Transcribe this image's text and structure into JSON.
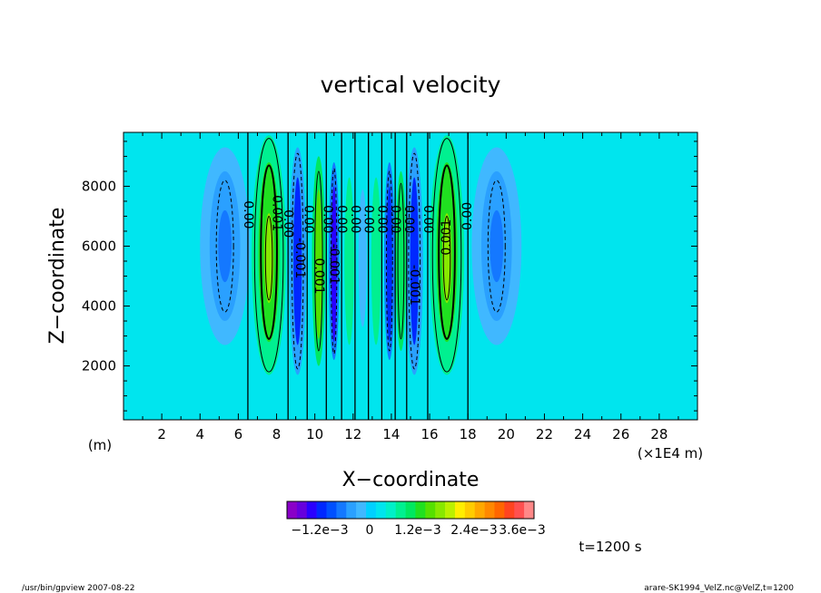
{
  "chart_data": {
    "type": "heatmap",
    "title": "vertical velocity",
    "xlabel": "X−coordinate",
    "ylabel": "Z−coordinate",
    "xunit_left": "(m)",
    "xunit_right": "(×1E4 m)",
    "xlim": [
      0,
      30
    ],
    "ylim": [
      200,
      9800
    ],
    "xticks": [
      2,
      4,
      6,
      8,
      10,
      12,
      14,
      16,
      18,
      20,
      22,
      24,
      26,
      28
    ],
    "xtick_labels": [
      "2",
      "4",
      "6",
      "8",
      "10",
      "12",
      "14",
      "16",
      "18",
      "20",
      "22",
      "24",
      "26",
      "28"
    ],
    "yticks": [
      2000,
      4000,
      6000,
      8000
    ],
    "ytick_labels": [
      "2000",
      "4000",
      "6000",
      "8000"
    ],
    "background_color": "#00e5ee",
    "cells": [
      {
        "x": 5.3,
        "z": 6000,
        "hw": 1.3,
        "hz": 3300,
        "level": -2
      },
      {
        "x": 5.3,
        "z": 6000,
        "hw": 0.8,
        "hz": 2500,
        "level": -3
      },
      {
        "x": 5.3,
        "z": 6000,
        "hw": 0.35,
        "hz": 1200,
        "level": -4
      },
      {
        "x": 19.5,
        "z": 6000,
        "hw": 1.3,
        "hz": 3300,
        "level": -2
      },
      {
        "x": 19.5,
        "z": 6000,
        "hw": 0.8,
        "hz": 2500,
        "level": -3
      },
      {
        "x": 19.5,
        "z": 6000,
        "hw": 0.35,
        "hz": 1200,
        "level": -4
      },
      {
        "x": 7.6,
        "z": 5700,
        "hw": 0.9,
        "hz": 4000,
        "level": 2
      },
      {
        "x": 7.6,
        "z": 5800,
        "hw": 0.55,
        "hz": 3000,
        "level": 4
      },
      {
        "x": 7.6,
        "z": 5600,
        "hw": 0.25,
        "hz": 1500,
        "level": 6
      },
      {
        "x": 16.9,
        "z": 5700,
        "hw": 0.9,
        "hz": 4000,
        "level": 2
      },
      {
        "x": 16.9,
        "z": 5800,
        "hw": 0.55,
        "hz": 3000,
        "level": 4
      },
      {
        "x": 16.9,
        "z": 5600,
        "hw": 0.25,
        "hz": 1500,
        "level": 6
      },
      {
        "x": 9.1,
        "z": 5500,
        "hw": 0.45,
        "hz": 3800,
        "level": -3
      },
      {
        "x": 9.1,
        "z": 5500,
        "hw": 0.22,
        "hz": 2800,
        "level": -6
      },
      {
        "x": 15.2,
        "z": 5500,
        "hw": 0.45,
        "hz": 3800,
        "level": -3
      },
      {
        "x": 15.2,
        "z": 5500,
        "hw": 0.22,
        "hz": 2800,
        "level": -6
      },
      {
        "x": 10.2,
        "z": 5500,
        "hw": 0.35,
        "hz": 3500,
        "level": 3
      },
      {
        "x": 10.2,
        "z": 5400,
        "hw": 0.18,
        "hz": 2500,
        "level": 5
      },
      {
        "x": 11.0,
        "z": 5500,
        "hw": 0.28,
        "hz": 3300,
        "level": -4
      },
      {
        "x": 11.0,
        "z": 5400,
        "hw": 0.14,
        "hz": 2600,
        "level": -7
      },
      {
        "x": 11.8,
        "z": 5500,
        "hw": 0.25,
        "hz": 2800,
        "level": 2
      },
      {
        "x": 12.5,
        "z": 5600,
        "hw": 0.22,
        "hz": 2300,
        "level": -2
      },
      {
        "x": 13.2,
        "z": 5500,
        "hw": 0.25,
        "hz": 2800,
        "level": 2
      },
      {
        "x": 13.9,
        "z": 5500,
        "hw": 0.28,
        "hz": 3300,
        "level": -4
      },
      {
        "x": 13.9,
        "z": 5400,
        "hw": 0.14,
        "hz": 2600,
        "level": -6
      },
      {
        "x": 14.5,
        "z": 5500,
        "hw": 0.28,
        "hz": 3000,
        "level": 3
      }
    ],
    "zero_lines_x": [
      6.5,
      8.6,
      9.6,
      10.6,
      11.4,
      12.1,
      12.8,
      13.5,
      14.2,
      14.8,
      15.9,
      18.0
    ],
    "contours": [
      {
        "x": 7.6,
        "z": 5700,
        "hw": 0.75,
        "hz": 3900,
        "dash": false,
        "w": 1
      },
      {
        "x": 7.6,
        "z": 5800,
        "hw": 0.42,
        "hz": 2900,
        "dash": false,
        "w": 2
      },
      {
        "x": 7.6,
        "z": 5600,
        "hw": 0.18,
        "hz": 1400,
        "dash": false,
        "w": 1
      },
      {
        "x": 16.9,
        "z": 5700,
        "hw": 0.75,
        "hz": 3900,
        "dash": false,
        "w": 1
      },
      {
        "x": 16.9,
        "z": 5800,
        "hw": 0.42,
        "hz": 2900,
        "dash": false,
        "w": 2
      },
      {
        "x": 16.9,
        "z": 5600,
        "hw": 0.18,
        "hz": 1400,
        "dash": false,
        "w": 1
      },
      {
        "x": 5.3,
        "z": 6000,
        "hw": 0.45,
        "hz": 2200,
        "dash": true,
        "w": 1
      },
      {
        "x": 19.5,
        "z": 6000,
        "hw": 0.45,
        "hz": 2200,
        "dash": true,
        "w": 1
      },
      {
        "x": 9.1,
        "z": 5500,
        "hw": 0.3,
        "hz": 3600,
        "dash": true,
        "w": 1
      },
      {
        "x": 15.2,
        "z": 5500,
        "hw": 0.3,
        "hz": 3600,
        "dash": true,
        "w": 1
      },
      {
        "x": 10.2,
        "z": 5500,
        "hw": 0.2,
        "hz": 3000,
        "dash": false,
        "w": 1
      },
      {
        "x": 11.0,
        "z": 5500,
        "hw": 0.15,
        "hz": 3100,
        "dash": true,
        "w": 1
      },
      {
        "x": 13.9,
        "z": 5500,
        "hw": 0.16,
        "hz": 3000,
        "dash": true,
        "w": 1
      },
      {
        "x": 14.5,
        "z": 5500,
        "hw": 0.16,
        "hz": 2600,
        "dash": false,
        "w": 1
      }
    ],
    "contour_labels": [
      {
        "x": 6.5,
        "z": 7050,
        "text": "0.00",
        "rot": 90
      },
      {
        "x": 8.0,
        "z": 7100,
        "text": "0.001",
        "rot": 90
      },
      {
        "x": 8.6,
        "z": 6750,
        "text": "0.00",
        "rot": 90
      },
      {
        "x": 9.2,
        "z": 5600,
        "text": "-0.001",
        "rot": 90
      },
      {
        "x": 9.65,
        "z": 6900,
        "text": "0.00",
        "rot": 90
      },
      {
        "x": 10.2,
        "z": 5000,
        "text": "0.001",
        "rot": 90
      },
      {
        "x": 10.65,
        "z": 6900,
        "text": "0.00",
        "rot": 90
      },
      {
        "x": 11.0,
        "z": 5400,
        "text": "-0.001",
        "rot": 90
      },
      {
        "x": 11.4,
        "z": 6900,
        "text": "0.00",
        "rot": 90
      },
      {
        "x": 12.1,
        "z": 6900,
        "text": "0.00",
        "rot": 90
      },
      {
        "x": 12.8,
        "z": 6900,
        "text": "0.00",
        "rot": 90
      },
      {
        "x": 13.5,
        "z": 6900,
        "text": "0.00",
        "rot": 90
      },
      {
        "x": 14.2,
        "z": 6900,
        "text": "0.00",
        "rot": 90
      },
      {
        "x": 14.9,
        "z": 6900,
        "text": "0.00",
        "rot": 90
      },
      {
        "x": 15.2,
        "z": 4700,
        "text": "-0.001",
        "rot": 90
      },
      {
        "x": 15.9,
        "z": 6900,
        "text": "0.00",
        "rot": 90
      },
      {
        "x": 16.9,
        "z": 6300,
        "text": "0.001",
        "rot": 270
      },
      {
        "x": 18.0,
        "z": 7000,
        "text": "0.00",
        "rot": 270
      }
    ],
    "colorbar": {
      "colors": [
        "#8a00c8",
        "#6600dd",
        "#2a00ff",
        "#0028ff",
        "#0050ff",
        "#1478ff",
        "#2aa0ff",
        "#40b8ff",
        "#00d0ff",
        "#00e5ee",
        "#00f0c8",
        "#00f090",
        "#00e860",
        "#20e020",
        "#55e000",
        "#88e800",
        "#bbf000",
        "#ffee00",
        "#ffcc00",
        "#ffa800",
        "#ff8800",
        "#ff6600",
        "#ff4420",
        "#ff5050",
        "#ff8888"
      ],
      "labels": [
        "−1.2e−3",
        "0",
        "1.2e−3",
        "2.4e−3",
        "3.6e−3"
      ]
    }
  },
  "annotation": {
    "time": "t=1200 s"
  },
  "footer": {
    "left": "/usr/bin/gpview   2007-08-22",
    "right": "arare-SK1994_VelZ.nc@VelZ,t=1200"
  }
}
